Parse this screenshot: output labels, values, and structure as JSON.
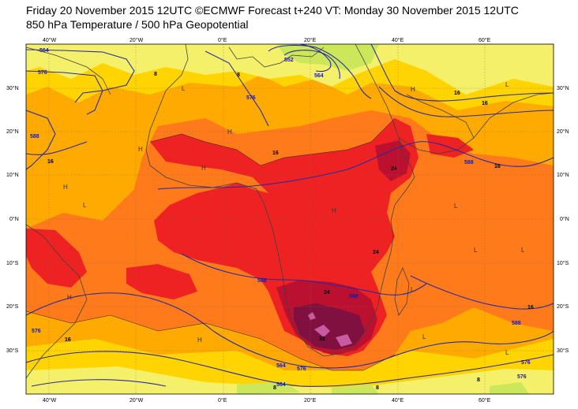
{
  "header": {
    "line1": "Friday 20 November 2015 12UTC ©ECMWF Forecast t+240 VT: Monday 30 November 2015 12UTC",
    "line2": "850 hPa Temperature / 500 hPa Geopotential"
  },
  "axes": {
    "lon_labels": [
      "40°W",
      "20°W",
      "0°E",
      "20°E",
      "40°E",
      "60°E"
    ],
    "lat_labels": [
      "30°N",
      "20°N",
      "10°N",
      "0°N",
      "10°S",
      "20°S",
      "30°S"
    ]
  },
  "colors": {
    "temp_0_4": "#cce85a",
    "temp_4_8": "#f5f06a",
    "temp_8_12": "#ffd400",
    "temp_12_16": "#ffaa00",
    "temp_16_20": "#ff7a1a",
    "temp_20_24": "#ee2222",
    "temp_24_28": "#bb1030",
    "temp_28_32": "#801040",
    "temp_32_36": "#c85aa0",
    "geopotential_line": "#2a2aa0",
    "coastline": "#404040"
  },
  "geopotential_labels": [
    "564",
    "576",
    "588",
    "552",
    "564",
    "576",
    "588",
    "588",
    "576",
    "576",
    "564",
    "576",
    "588",
    "588",
    "576",
    "564"
  ],
  "temperature_labels": [
    "8",
    "8",
    "16",
    "16",
    "16",
    "24",
    "24",
    "24",
    "32",
    "16",
    "16",
    "16",
    "8",
    "8",
    "16",
    "8"
  ],
  "pressure_centres": [
    "H",
    "H",
    "H",
    "H",
    "H",
    "L",
    "L",
    "L",
    "L",
    "H",
    "H",
    "L",
    "L",
    "H",
    "L",
    "L",
    "L"
  ]
}
